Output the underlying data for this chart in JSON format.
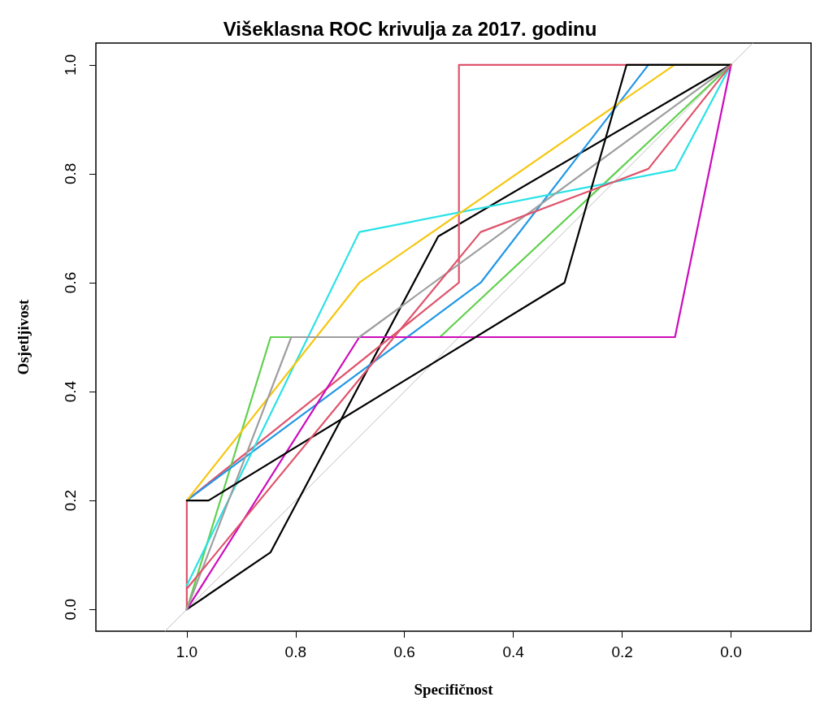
{
  "chart_data": {
    "type": "line",
    "title": "Višeklasna ROC krivulja za 2017. godinu",
    "xlabel": "Specifičnost",
    "ylabel": "Osjetljivost",
    "xlim": [
      1.167,
      -0.147
    ],
    "ylim": [
      -0.04,
      1.04
    ],
    "xticks": [
      {
        "value": 1,
        "label": "1.0"
      },
      0.8,
      0.6,
      0.4,
      0.2,
      {
        "value": 0,
        "label": "0.0"
      }
    ],
    "yticks": [
      {
        "value": 0,
        "label": "0.0"
      },
      0.2,
      0.4,
      0.6,
      0.8,
      {
        "value": 1,
        "label": "1.0"
      }
    ],
    "grid": false,
    "marker": "none",
    "line_style": "solid",
    "series": [
      {
        "color": "#bebebe",
        "x": [
          1.04,
          -0.04
        ],
        "values": [
          -0.04,
          1.04
        ]
      },
      {
        "color": "#000000",
        "x": [
          1.0,
          0.846,
          0.538,
          0.0
        ],
        "values": [
          0.0,
          0.105,
          0.685,
          1.0
        ]
      },
      {
        "color": "#df536b",
        "x": [
          1.0,
          1.0,
          0.5,
          0.5,
          0.0
        ],
        "values": [
          0.0,
          0.2,
          0.6,
          1.0,
          1.0
        ]
      },
      {
        "color": "#61d04f",
        "x": [
          1.0,
          0.846,
          0.535,
          0.0
        ],
        "values": [
          0.0,
          0.5,
          0.5,
          1.0
        ]
      },
      {
        "color": "#2297e6",
        "x": [
          1.0,
          0.46,
          0.152,
          0.0
        ],
        "values": [
          0.2,
          0.6,
          1.0,
          1.0
        ]
      },
      {
        "color": "#28e2e5",
        "x": [
          1.0,
          0.683,
          0.103,
          0.0
        ],
        "values": [
          0.044,
          0.693,
          0.807,
          1.0
        ]
      },
      {
        "color": "#cd0bbc",
        "x": [
          1.0,
          0.683,
          0.103,
          0.0
        ],
        "values": [
          0.0,
          0.5,
          0.5,
          1.0
        ]
      },
      {
        "color": "#f5c710",
        "x": [
          1.0,
          0.683,
          0.104,
          0.0
        ],
        "values": [
          0.2,
          0.6,
          1.0,
          1.0
        ]
      },
      {
        "color": "#9e9e9e",
        "x": [
          1.0,
          0.808,
          0.683,
          0.0
        ],
        "values": [
          0.0,
          0.5,
          0.5,
          1.0
        ]
      },
      {
        "color": "#000000",
        "x": [
          1.0,
          0.96,
          0.306,
          0.192,
          0.0
        ],
        "values": [
          0.2,
          0.2,
          0.6,
          1.0,
          1.0
        ]
      },
      {
        "color": "#df536b",
        "x": [
          1.0,
          0.46,
          0.152,
          0.0
        ],
        "values": [
          0.038,
          0.693,
          0.809,
          1.0
        ]
      }
    ]
  }
}
